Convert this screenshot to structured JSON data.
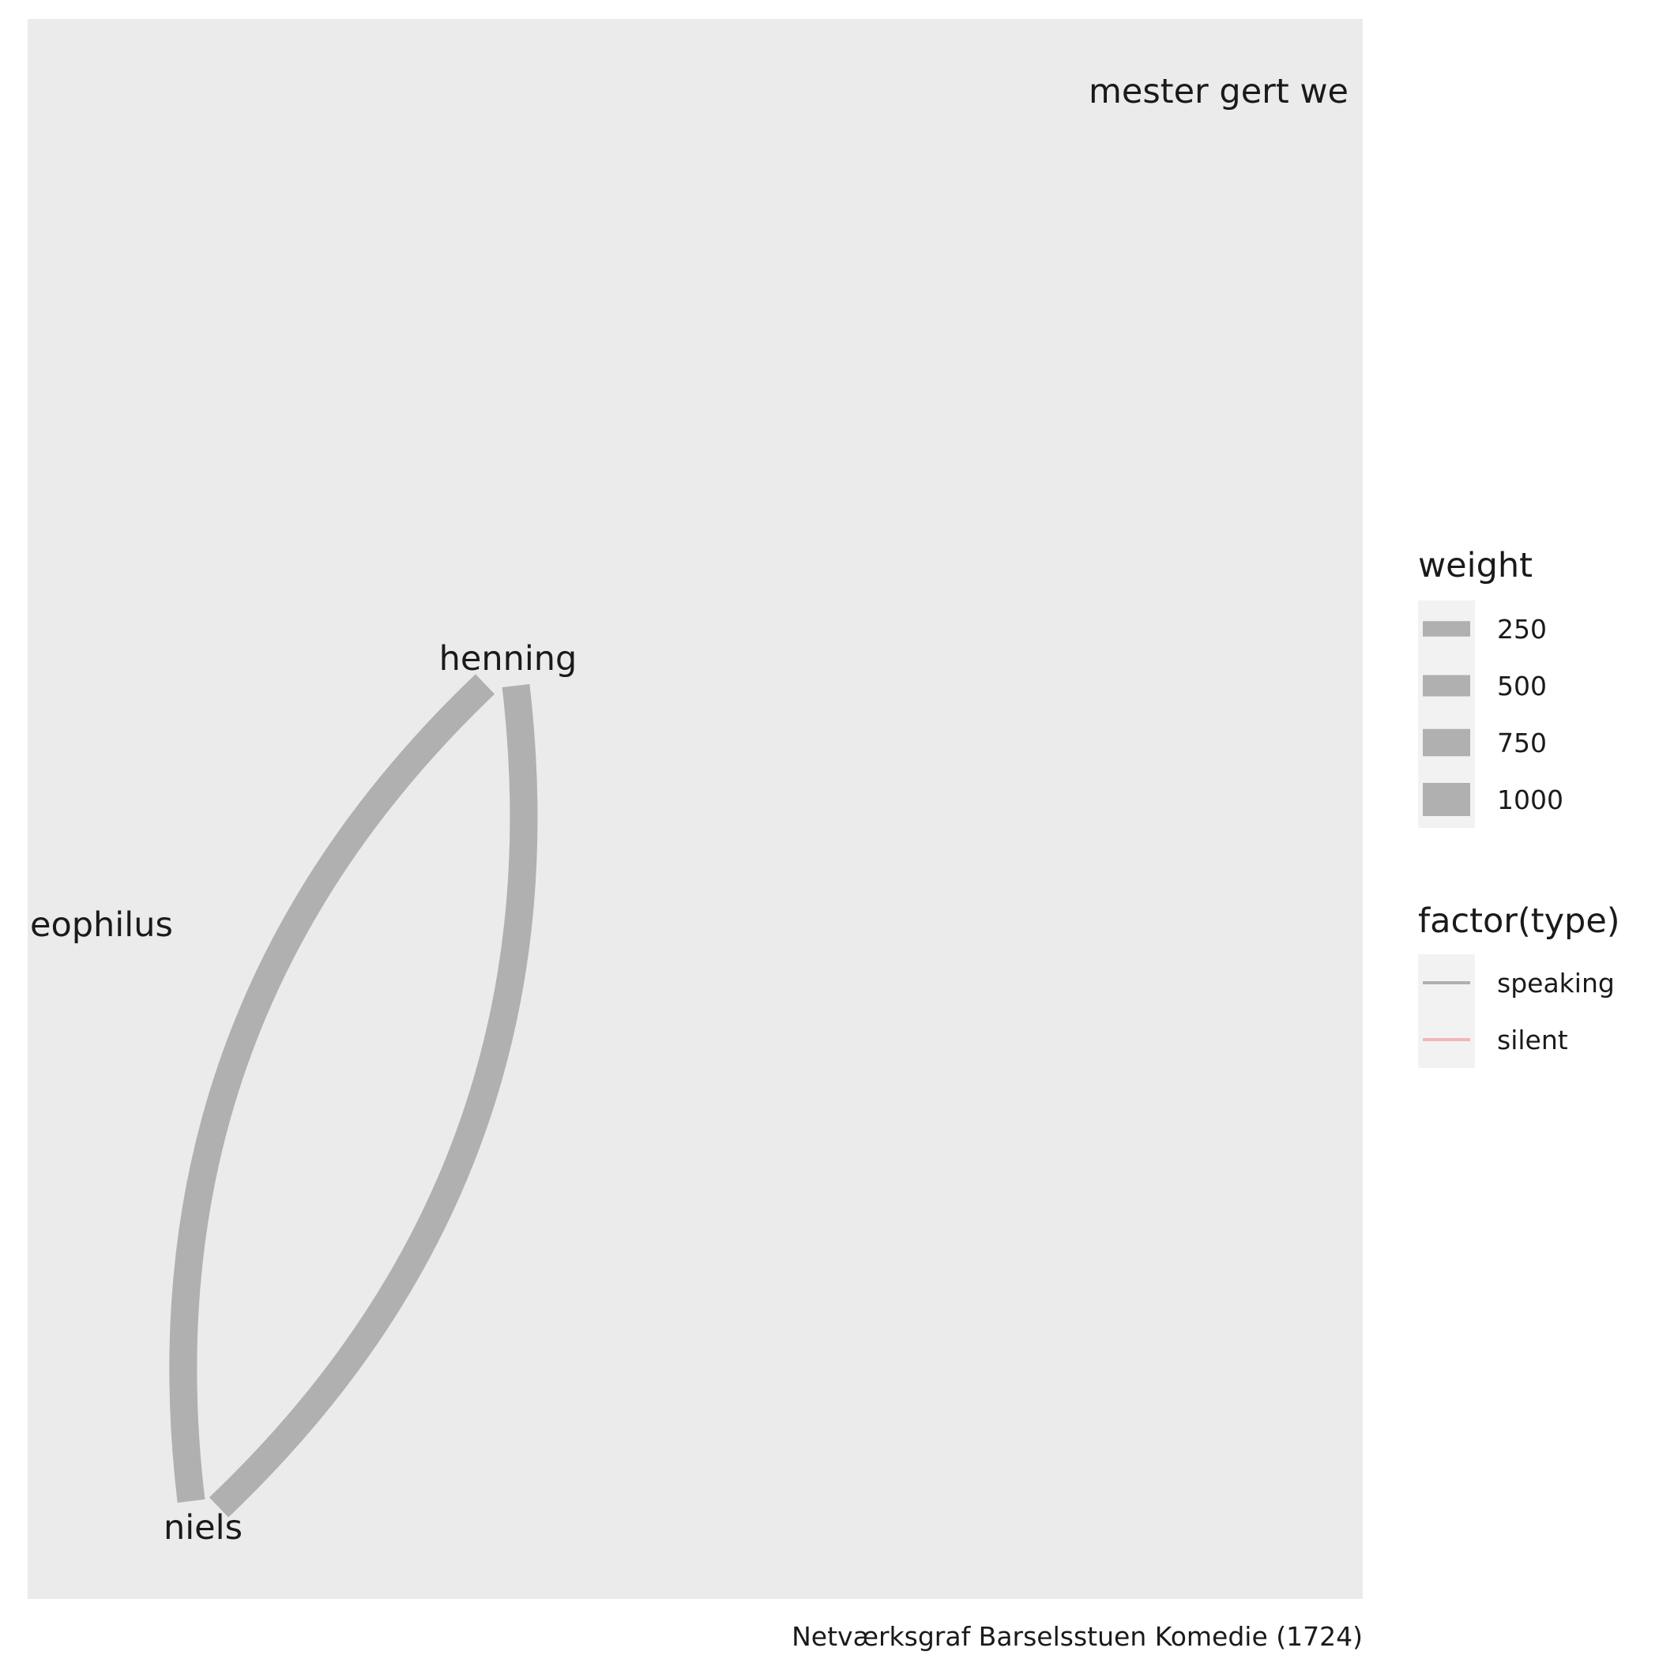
{
  "chart_data": {
    "type": "network",
    "caption": "Netværksgraf Barselsstuen Komedie (1724)",
    "nodes": [
      {
        "id": "mester_gert_westphaler",
        "label": "mester gert we"
      },
      {
        "id": "henning",
        "label": "henning"
      },
      {
        "id": "theophilus",
        "label": "eophilus"
      },
      {
        "id": "niels",
        "label": "niels"
      }
    ],
    "edges": [
      {
        "from": "henning",
        "to": "niels",
        "weight": 1000,
        "type": "speaking"
      },
      {
        "from": "niels",
        "to": "henning",
        "weight": 1000,
        "type": "speaking"
      }
    ],
    "legend": {
      "weight": {
        "title": "weight",
        "items": [
          {
            "label": "250",
            "value": 250
          },
          {
            "label": "500",
            "value": 500
          },
          {
            "label": "750",
            "value": 750
          },
          {
            "label": "1000",
            "value": 1000
          }
        ]
      },
      "type": {
        "title": "factor(type)",
        "items": [
          {
            "label": "speaking",
            "color": "#b0b0b0"
          },
          {
            "label": "silent",
            "color": "#f4b6b6"
          }
        ]
      },
      "placement": "right"
    },
    "colors": {
      "panel": "#ebebeb",
      "legend_key": "#f2f2f2",
      "edge": "#b0b0b0"
    }
  }
}
